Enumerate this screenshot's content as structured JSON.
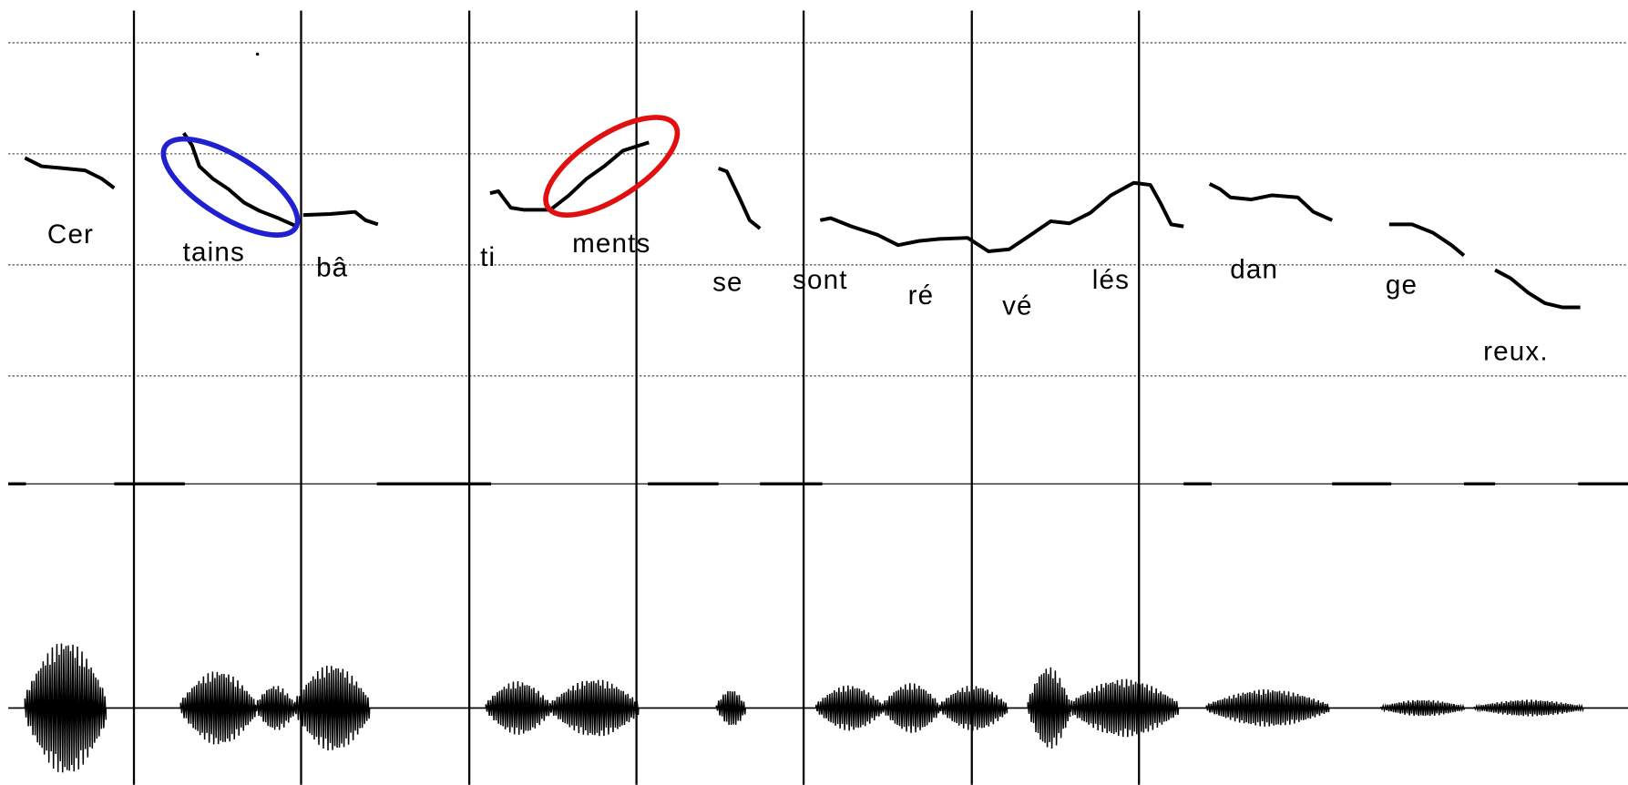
{
  "syllables": [
    "Cer",
    "tains",
    "bâ",
    "ti",
    "ments",
    "se",
    "sont",
    "ré",
    "vé",
    "lés",
    "dan",
    "ge",
    "reux."
  ]
}
